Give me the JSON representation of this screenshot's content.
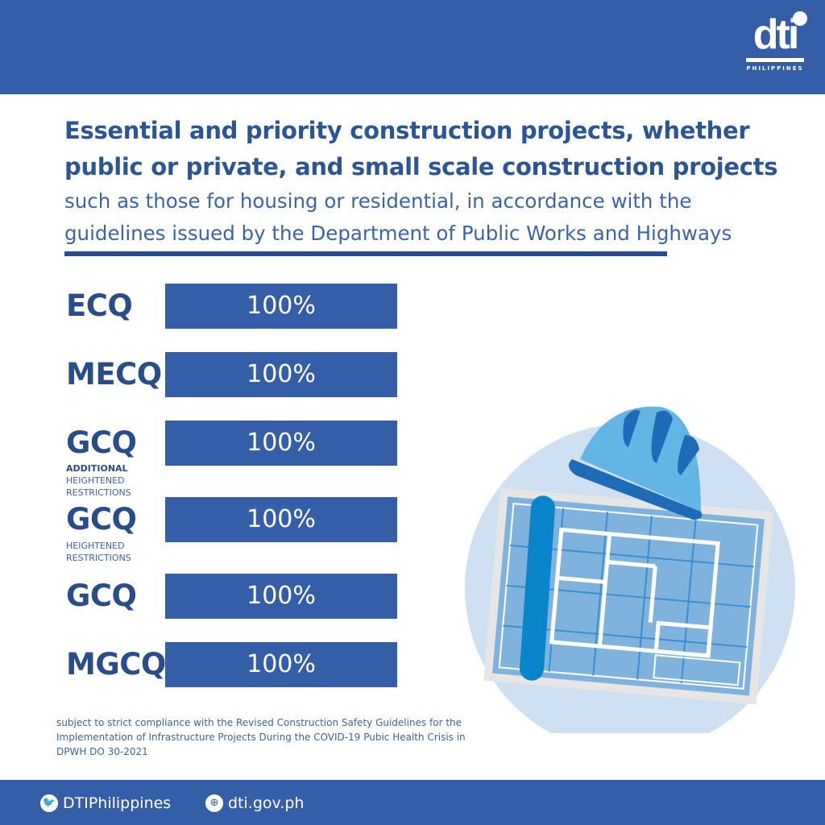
{
  "header": {
    "logo_text": "dti",
    "logo_sub": "PHILIPPINES"
  },
  "title": {
    "line1": "Essential and priority construction projects, whether",
    "line2": "public or private, and small scale construction projects",
    "sub1": "such as those for housing or residential, in accordance with the",
    "sub2": "guidelines issued by the Department of Public Works and Highways"
  },
  "rows": [
    {
      "label": "ECQ",
      "value": "100%"
    },
    {
      "label": "MECQ",
      "value": "100%"
    },
    {
      "label": "GCQ",
      "sub_bold": "ADDITIONAL",
      "sub": "HEIGHTENED",
      "sub2": "RESTRICTIONS",
      "value": "100%"
    },
    {
      "label": "GCQ",
      "sub": "HEIGHTENED",
      "sub2": "RESTRICTIONS",
      "value": "100%"
    },
    {
      "label": "GCQ",
      "value": "100%"
    },
    {
      "label": "MGCQ",
      "value": "100%"
    }
  ],
  "note": "subject to strict compliance with the Revised Construction Safety Guidelines for the Implementation of Infrastructure Projects During the COVID-19 Pubic Health Crisis in DPWH DO 30-2021",
  "footer": {
    "twitter": "DTIPhilippines",
    "website": "dti.gov.ph"
  },
  "colors": {
    "brand": "#355ea8",
    "text": "#294c8a"
  }
}
